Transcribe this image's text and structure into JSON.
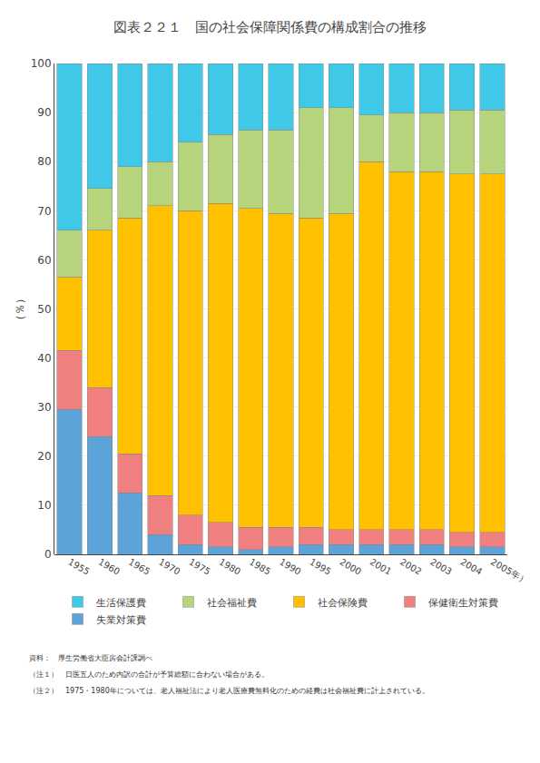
{
  "chart_data": {
    "type": "bar",
    "title": "図表２２１　国の社会保障関係費の構成割合の推移",
    "categories": [
      "1955",
      "1960",
      "1965",
      "1970",
      "1975",
      "1980",
      "1985",
      "1990",
      "1995",
      "2000",
      "2001",
      "2002",
      "2003",
      "2004",
      "2005年）"
    ],
    "series": [
      {
        "name": "失業対策費",
        "color": "#5ba3d9",
        "values": [
          29.5,
          24.0,
          12.5,
          4.0,
          2.0,
          1.5,
          1.0,
          1.5,
          2.0,
          2.0,
          2.0,
          2.0,
          2.0,
          1.5,
          1.5
        ]
      },
      {
        "name": "保健衛生対策費",
        "color": "#f08080",
        "values": [
          12.0,
          10.0,
          8.0,
          8.0,
          6.0,
          5.0,
          4.5,
          4.0,
          3.5,
          3.0,
          3.0,
          3.0,
          3.0,
          3.0,
          3.0
        ]
      },
      {
        "name": "社会保険費",
        "color": "#ffc000",
        "values": [
          15.0,
          32.0,
          48.0,
          59.0,
          62.0,
          65.0,
          65.0,
          64.0,
          63.0,
          64.5,
          75.0,
          73.0,
          73.0,
          73.0,
          73.0
        ]
      },
      {
        "name": "社会福祉費",
        "color": "#b5d47c",
        "values": [
          9.5,
          8.5,
          10.5,
          9.0,
          14.0,
          14.0,
          16.0,
          17.0,
          22.5,
          21.5,
          9.5,
          12.0,
          12.0,
          13.0,
          13.0
        ]
      },
      {
        "name": "生活保護費",
        "color": "#40c8e8",
        "values": [
          34.0,
          25.5,
          21.0,
          20.0,
          16.0,
          14.5,
          13.5,
          13.5,
          9.0,
          9.0,
          10.5,
          10.0,
          10.0,
          9.5,
          9.5
        ]
      }
    ],
    "ylabel": "（％）",
    "ylim": [
      0,
      100
    ],
    "yticks": [
      0,
      10,
      20,
      30,
      40,
      50,
      60,
      70,
      80,
      90,
      100
    ],
    "grid": true,
    "stacked": true,
    "legend": "bottom",
    "annotations": [
      "資料：　厚生労働省大臣房会計課調べ",
      "（注１）　日医五人のため内訳の合計が予算総額に合わない場合がある。",
      "（注２）　1975・1980年については、老人福祉法により老人医療費無料化のための経費は社会福祉費に計上されている。"
    ]
  }
}
